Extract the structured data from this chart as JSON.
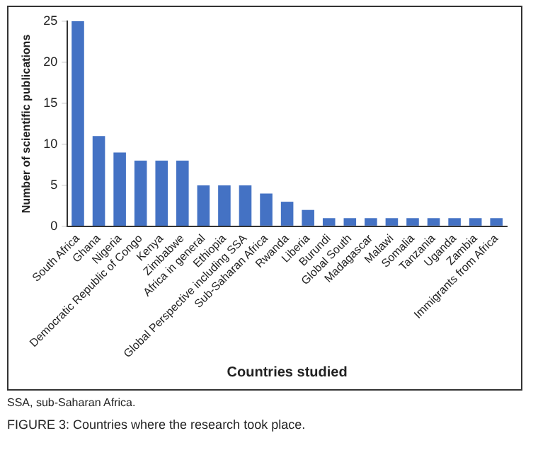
{
  "chart_data": {
    "type": "bar",
    "categories": [
      "South Africa",
      "Ghana",
      "Nigeria",
      "Democratic Republic of Congo",
      "Kenya",
      "Zimbabwe",
      "Africa in general",
      "Ethiopia",
      "Global Perspective including SSA",
      "Sub-Saharan Africa",
      "Rwanda",
      "Liberia",
      "Burundi",
      "Global South",
      "Madagascar",
      "Malawi",
      "Somalia",
      "Tanzania",
      "Uganda",
      "Zambia",
      "Immigrants from Africa"
    ],
    "values": [
      25,
      11,
      9,
      8,
      8,
      8,
      5,
      5,
      5,
      4,
      3,
      2,
      1,
      1,
      1,
      1,
      1,
      1,
      1,
      1,
      1
    ],
    "color": "#4472c4",
    "xlabel": "Countries studied",
    "ylabel": "Number of scientific publications",
    "ylim": [
      0,
      25
    ],
    "yticks": [
      0,
      5,
      10,
      15,
      20,
      25
    ],
    "grid": false,
    "legend": false,
    "annotations": [
      "SSA, sub-Saharan Africa.",
      "FIGURE 3: Countries where the research took place."
    ]
  }
}
